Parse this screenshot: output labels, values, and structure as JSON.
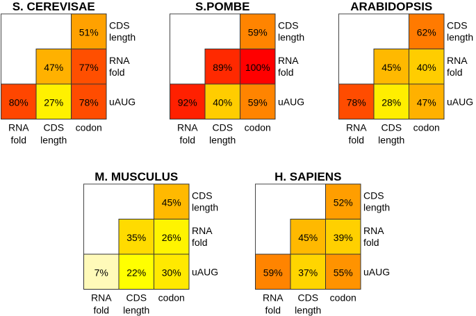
{
  "chart_data": {
    "type": "heatmap",
    "description": "Lower-triangular pairwise matrices of percentages for five organisms",
    "row_labels": [
      [
        "CDS",
        "length"
      ],
      [
        "RNA",
        "fold"
      ],
      [
        "uAUG"
      ]
    ],
    "col_labels": [
      [
        "RNA",
        "fold"
      ],
      [
        "CDS",
        "length"
      ],
      [
        "codon"
      ]
    ],
    "value_range": [
      0,
      100
    ],
    "unit": "%",
    "panels": [
      {
        "title": "S. CEREVISAE",
        "cells": [
          {
            "row": "CDS length",
            "col": "codon",
            "value": 51
          },
          {
            "row": "RNA fold",
            "col": "CDS length",
            "value": 47
          },
          {
            "row": "RNA fold",
            "col": "codon",
            "value": 77
          },
          {
            "row": "uAUG",
            "col": "RNA fold",
            "value": 80
          },
          {
            "row": "uAUG",
            "col": "CDS length",
            "value": 27
          },
          {
            "row": "uAUG",
            "col": "codon",
            "value": 78
          }
        ]
      },
      {
        "title": "S.POMBE",
        "cells": [
          {
            "row": "CDS length",
            "col": "codon",
            "value": 59
          },
          {
            "row": "RNA fold",
            "col": "CDS length",
            "value": 89
          },
          {
            "row": "RNA fold",
            "col": "codon",
            "value": 100
          },
          {
            "row": "uAUG",
            "col": "RNA fold",
            "value": 92
          },
          {
            "row": "uAUG",
            "col": "CDS length",
            "value": 40
          },
          {
            "row": "uAUG",
            "col": "codon",
            "value": 59
          }
        ]
      },
      {
        "title": "ARABIDOPSIS",
        "cells": [
          {
            "row": "CDS length",
            "col": "codon",
            "value": 62
          },
          {
            "row": "RNA fold",
            "col": "CDS length",
            "value": 45
          },
          {
            "row": "RNA fold",
            "col": "codon",
            "value": 40
          },
          {
            "row": "uAUG",
            "col": "RNA fold",
            "value": 78
          },
          {
            "row": "uAUG",
            "col": "CDS length",
            "value": 28
          },
          {
            "row": "uAUG",
            "col": "codon",
            "value": 47
          }
        ]
      },
      {
        "title": "M. MUSCULUS",
        "cells": [
          {
            "row": "CDS length",
            "col": "codon",
            "value": 45
          },
          {
            "row": "RNA fold",
            "col": "CDS length",
            "value": 35
          },
          {
            "row": "RNA fold",
            "col": "codon",
            "value": 26
          },
          {
            "row": "uAUG",
            "col": "RNA fold",
            "value": 7
          },
          {
            "row": "uAUG",
            "col": "CDS length",
            "value": 22
          },
          {
            "row": "uAUG",
            "col": "codon",
            "value": 30
          }
        ]
      },
      {
        "title": "H. SAPIENS",
        "cells": [
          {
            "row": "CDS length",
            "col": "codon",
            "value": 52
          },
          {
            "row": "RNA fold",
            "col": "CDS length",
            "value": 45
          },
          {
            "row": "RNA fold",
            "col": "codon",
            "value": 39
          },
          {
            "row": "uAUG",
            "col": "RNA fold",
            "value": 59
          },
          {
            "row": "uAUG",
            "col": "CDS length",
            "value": 37
          },
          {
            "row": "uAUG",
            "col": "codon",
            "value": 55
          }
        ]
      }
    ]
  }
}
